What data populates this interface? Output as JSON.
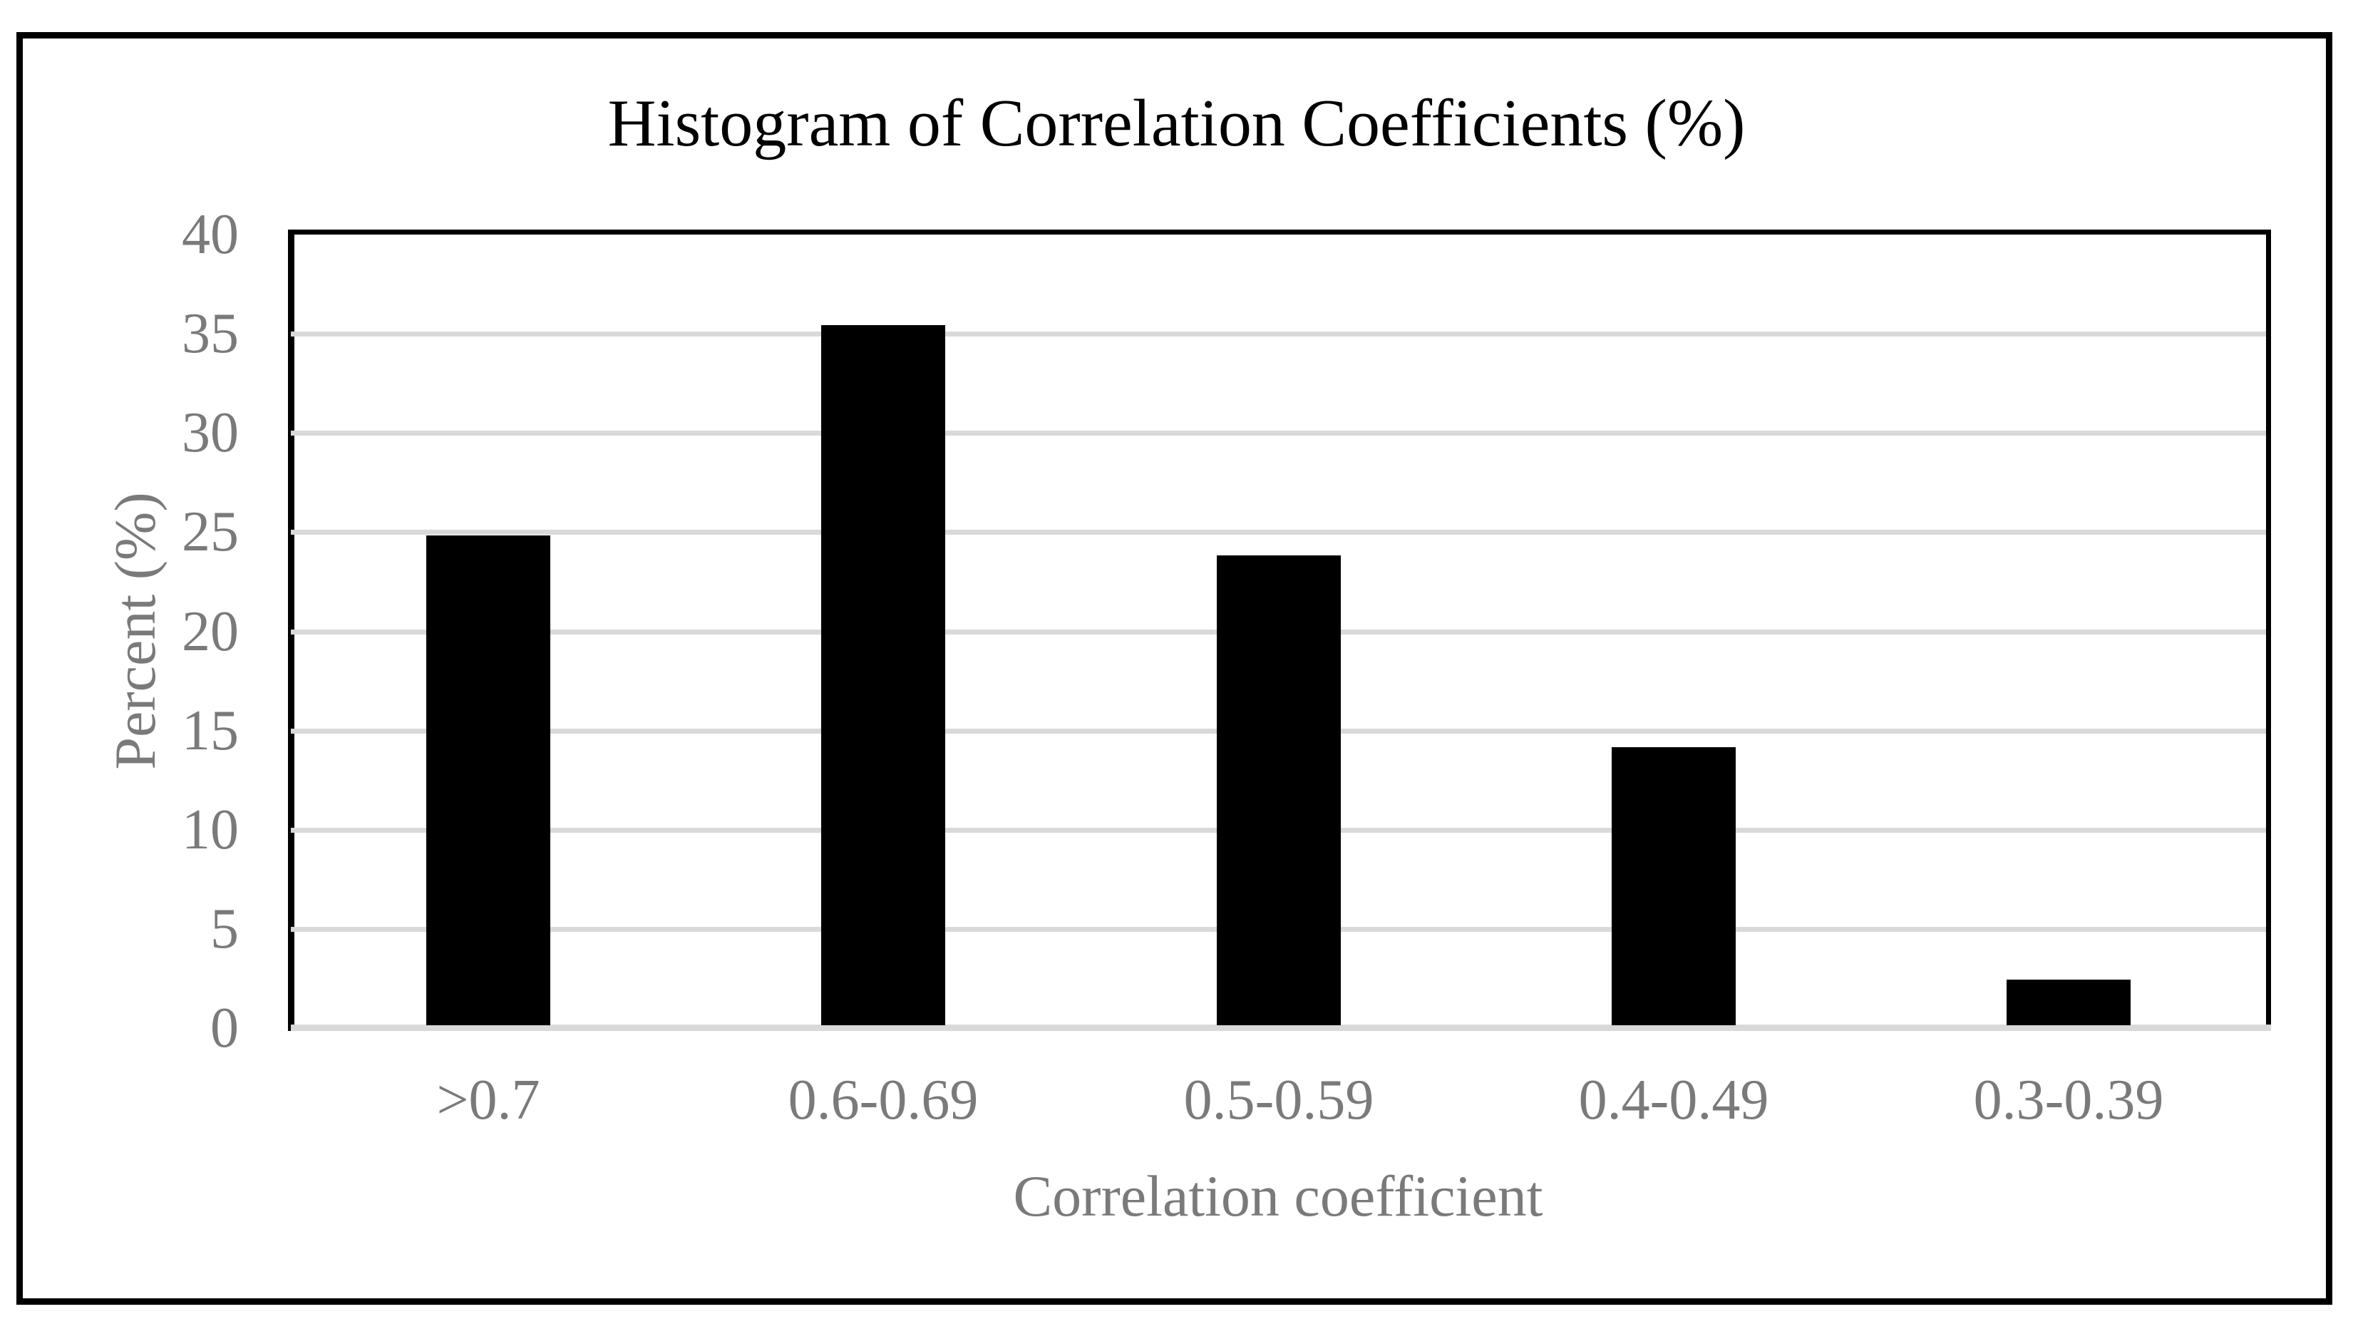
{
  "figure": {
    "title": "Histogram of Correlation Coefficients (%)"
  },
  "chart_data": {
    "type": "bar",
    "title": "Histogram of Correlation Coefficients (%)",
    "categories": [
      ">0.7",
      "0.6-0.69",
      "0.5-0.59",
      "0.4-0.49",
      "0.3-0.39"
    ],
    "values": [
      24.7,
      35.3,
      23.7,
      14.0,
      2.3
    ],
    "xlabel": "Correlation coefficient",
    "ylabel": "Percent (%)",
    "ylim": [
      0,
      40
    ],
    "ytick_step": 5,
    "yticks": [
      "0",
      "5",
      "10",
      "15",
      "20",
      "25",
      "30",
      "35",
      "40"
    ],
    "grid": "horizontal-major-only",
    "legend": "none",
    "bar_color": "#000000",
    "label_color": "#7a7a7a",
    "gridline_color": "#d9d9d9",
    "axis_line_color": "#000000"
  }
}
